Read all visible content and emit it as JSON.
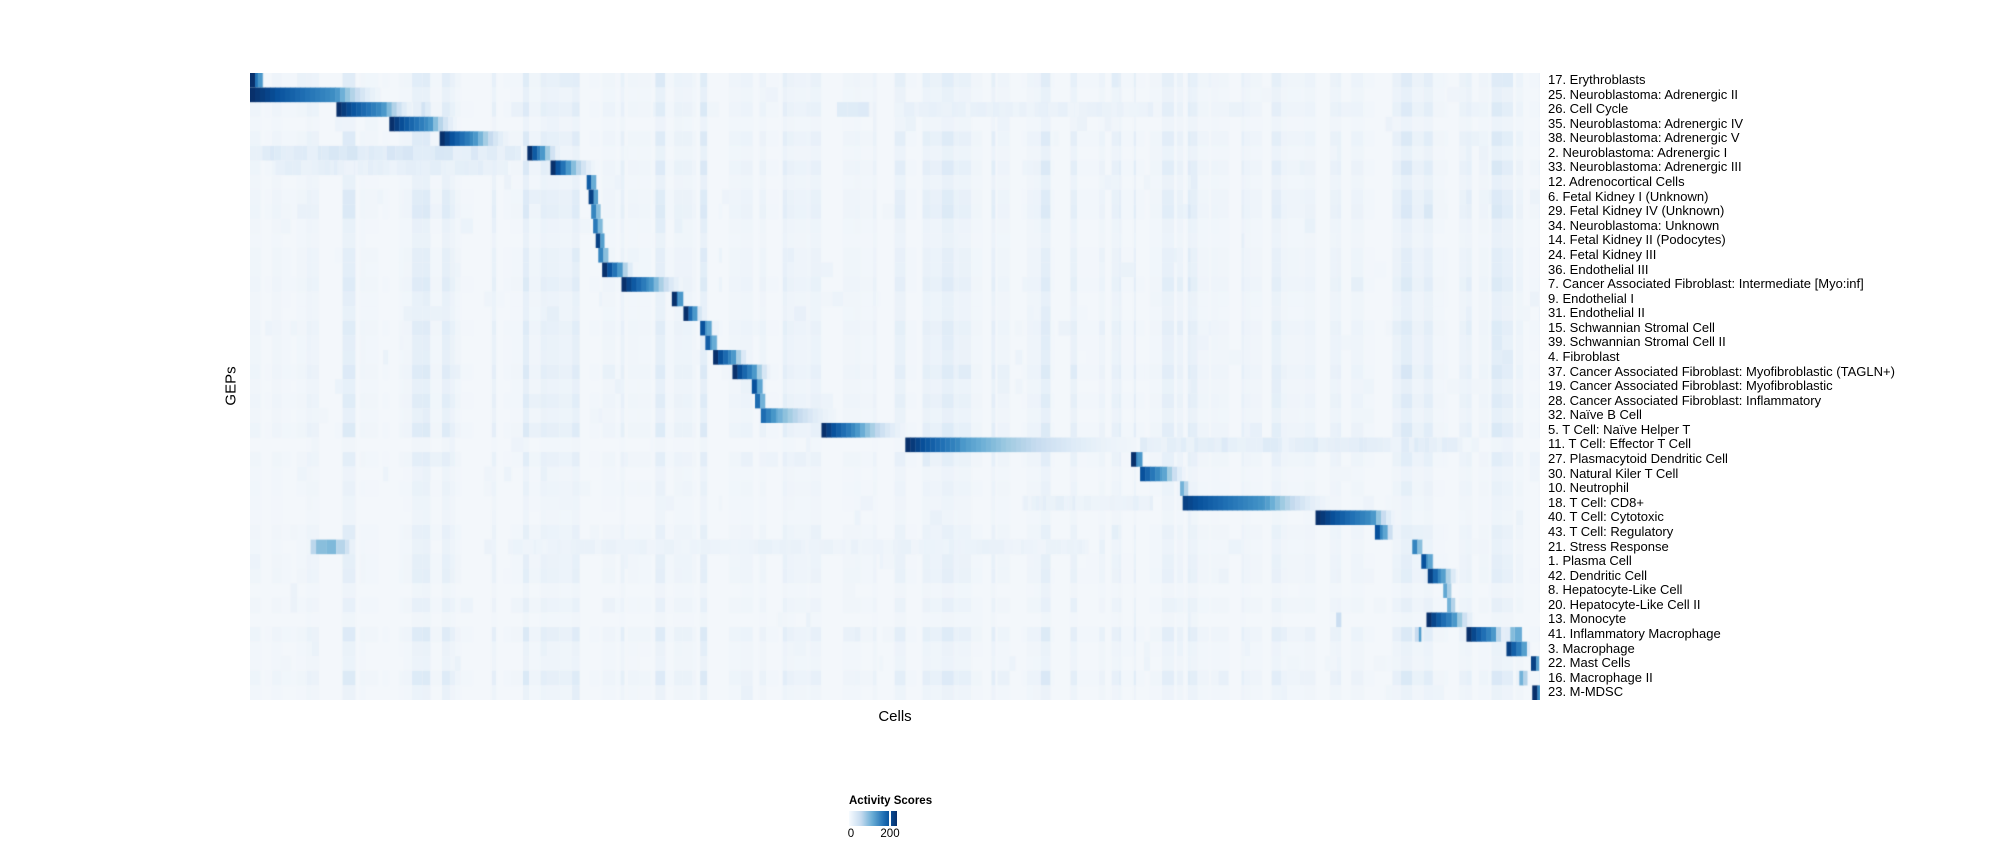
{
  "chart_data": {
    "type": "heatmap",
    "title": "",
    "xlabel": "Cells",
    "ylabel": "GEPs",
    "value_label": "Activity Scores",
    "value_range": [
      0,
      200
    ],
    "legend_position": "bottom-center",
    "grid": false,
    "colormap": {
      "name": "Blues",
      "stops": [
        [
          0.0,
          "#f3f7fb"
        ],
        [
          0.13,
          "#deebf7"
        ],
        [
          0.26,
          "#c6dbef"
        ],
        [
          0.39,
          "#9ecae1"
        ],
        [
          0.52,
          "#6baed6"
        ],
        [
          0.65,
          "#4292c6"
        ],
        [
          0.78,
          "#2171b5"
        ],
        [
          0.9,
          "#08519c"
        ],
        [
          1.0,
          "#08306b"
        ]
      ]
    },
    "noise": {
      "seed": 1337,
      "max_intensity": 0.09
    },
    "rows": [
      {
        "label": "17. Erythroblasts",
        "block": {
          "start": 0.0,
          "width": 0.006,
          "fade": 0.004,
          "peak": 1.0
        }
      },
      {
        "label": "25. Neuroblastoma: Adrenergic II",
        "block": {
          "start": 0.0,
          "width": 0.066,
          "fade": 0.035,
          "peak": 1.0
        }
      },
      {
        "label": "26. Cell Cycle",
        "block": {
          "start": 0.067,
          "width": 0.035,
          "fade": 0.024,
          "peak": 1.0
        },
        "bands": [
          [
            0.11,
            0.03,
            0.18
          ],
          [
            0.455,
            0.025,
            0.14
          ],
          [
            0.5,
            0.2,
            0.06
          ]
        ]
      },
      {
        "label": "35. Neuroblastoma: Adrenergic IV",
        "block": {
          "start": 0.108,
          "width": 0.03,
          "fade": 0.022,
          "peak": 1.0
        }
      },
      {
        "label": "38. Neuroblastoma: Adrenergic V",
        "block": {
          "start": 0.147,
          "width": 0.026,
          "fade": 0.028,
          "peak": 1.0
        }
      },
      {
        "label": "2. Neuroblastoma: Adrenergic I",
        "block": {
          "start": 0.215,
          "width": 0.01,
          "fade": 0.015,
          "peak": 1.0
        },
        "bands": [
          [
            0.0,
            0.21,
            0.13
          ]
        ]
      },
      {
        "label": "33. Neuroblastoma: Adrenergic III",
        "block": {
          "start": 0.233,
          "width": 0.012,
          "fade": 0.022,
          "peak": 1.0
        },
        "bands": [
          [
            0.02,
            0.18,
            0.08
          ]
        ]
      },
      {
        "label": "12. Adrenocortical Cells",
        "block": {
          "start": 0.261,
          "width": 0.0035,
          "fade": 0.004,
          "peak": 0.85
        }
      },
      {
        "label": "6. Fetal Kidney I (Unknown)",
        "block": {
          "start": 0.2625,
          "width": 0.004,
          "fade": 0.003,
          "peak": 0.95
        }
      },
      {
        "label": "29. Fetal Kidney IV (Unknown)",
        "block": {
          "start": 0.2645,
          "width": 0.004,
          "fade": 0.003,
          "peak": 0.7
        }
      },
      {
        "label": "34. Neuroblastoma: Unknown",
        "block": {
          "start": 0.266,
          "width": 0.0035,
          "fade": 0.004,
          "peak": 0.75
        }
      },
      {
        "label": "14. Fetal Kidney II (Podocytes)",
        "block": {
          "start": 0.268,
          "width": 0.0035,
          "fade": 0.003,
          "peak": 0.95
        }
      },
      {
        "label": "24. Fetal Kidney III",
        "block": {
          "start": 0.27,
          "width": 0.004,
          "fade": 0.004,
          "peak": 0.7
        }
      },
      {
        "label": "36. Endothelial III",
        "block": {
          "start": 0.273,
          "width": 0.012,
          "fade": 0.012,
          "peak": 1.0
        }
      },
      {
        "label": "7. Cancer Associated Fibroblast: Intermediate [Myo:inf]",
        "block": {
          "start": 0.288,
          "width": 0.021,
          "fade": 0.026,
          "peak": 1.0
        }
      },
      {
        "label": "9. Endothelial I",
        "block": {
          "start": 0.327,
          "width": 0.005,
          "fade": 0.004,
          "peak": 1.0
        }
      },
      {
        "label": "31. Endothelial II",
        "block": {
          "start": 0.336,
          "width": 0.007,
          "fade": 0.007,
          "peak": 1.0
        }
      },
      {
        "label": "15. Schwannian Stromal Cell",
        "block": {
          "start": 0.349,
          "width": 0.005,
          "fade": 0.004,
          "peak": 0.9
        }
      },
      {
        "label": "39. Schwannian Stromal Cell II",
        "block": {
          "start": 0.353,
          "width": 0.005,
          "fade": 0.004,
          "peak": 0.85
        }
      },
      {
        "label": "4. Fibroblast",
        "block": {
          "start": 0.359,
          "width": 0.014,
          "fade": 0.013,
          "peak": 1.0
        }
      },
      {
        "label": "37. Cancer Associated Fibroblast: Myofibroblastic (TAGLN+)",
        "block": {
          "start": 0.374,
          "width": 0.015,
          "fade": 0.014,
          "peak": 1.0
        }
      },
      {
        "label": "19. Cancer Associated Fibroblast: Myofibroblastic",
        "block": {
          "start": 0.389,
          "width": 0.0045,
          "fade": 0.005,
          "peak": 0.9
        }
      },
      {
        "label": "28. Cancer Associated Fibroblast: Inflammatory",
        "block": {
          "start": 0.3915,
          "width": 0.004,
          "fade": 0.004,
          "peak": 0.8
        }
      },
      {
        "label": "32. Naïve B Cell",
        "block": {
          "start": 0.396,
          "width": 0.013,
          "fade": 0.045,
          "peak": 0.8
        }
      },
      {
        "label": "5. T Cell: Naïve Helper T",
        "block": {
          "start": 0.443,
          "width": 0.026,
          "fade": 0.04,
          "peak": 1.0
        }
      },
      {
        "label": "11. T Cell: Effector T Cell",
        "block": {
          "start": 0.508,
          "width": 0.043,
          "fade": 0.135,
          "peak": 1.0
        },
        "bands": [
          [
            0.69,
            0.25,
            0.1
          ]
        ]
      },
      {
        "label": "27. Plasmacytoid Dendritic Cell",
        "block": {
          "start": 0.683,
          "width": 0.005,
          "fade": 0.004,
          "peak": 1.0
        }
      },
      {
        "label": "30. Natural Kiler T Cell",
        "block": {
          "start": 0.69,
          "width": 0.017,
          "fade": 0.018,
          "peak": 0.9
        }
      },
      {
        "label": "10. Neutrophil",
        "block": {
          "start": 0.721,
          "width": 0.003,
          "fade": 0.003,
          "peak": 0.5
        }
      },
      {
        "label": "18. T Cell: CD8+",
        "block": {
          "start": 0.723,
          "width": 0.064,
          "fade": 0.05,
          "peak": 0.95
        },
        "bands": [
          [
            0.6,
            0.1,
            0.07
          ]
        ]
      },
      {
        "label": "40. T Cell: Cytotoxic",
        "block": {
          "start": 0.826,
          "width": 0.043,
          "fade": 0.018,
          "peak": 1.0
        }
      },
      {
        "label": "43. T Cell: Regulatory",
        "block": {
          "start": 0.872,
          "width": 0.006,
          "fade": 0.009,
          "peak": 0.9
        }
      },
      {
        "label": "21. Stress Response",
        "block": {
          "start": 0.901,
          "width": 0.004,
          "fade": 0.004,
          "peak": 0.7
        },
        "bands": [
          [
            0.047,
            0.03,
            0.35
          ],
          [
            0.2,
            0.45,
            0.05
          ]
        ]
      },
      {
        "label": "1. Plasma Cell",
        "block": {
          "start": 0.908,
          "width": 0.005,
          "fade": 0.004,
          "peak": 0.9
        }
      },
      {
        "label": "42. Dendritic Cell",
        "block": {
          "start": 0.913,
          "width": 0.01,
          "fade": 0.013,
          "peak": 0.95
        }
      },
      {
        "label": "8. Hepatocyte-Like Cell",
        "block": {
          "start": 0.925,
          "width": 0.003,
          "fade": 0.003,
          "peak": 0.55
        }
      },
      {
        "label": "20. Hepatocyte-Like Cell II",
        "block": {
          "start": 0.928,
          "width": 0.003,
          "fade": 0.003,
          "peak": 0.5
        }
      },
      {
        "label": "13. Monocyte",
        "block": {
          "start": 0.912,
          "width": 0.02,
          "fade": 0.016,
          "peak": 1.0
        },
        "bands": [
          [
            0.842,
            0.004,
            0.4
          ]
        ]
      },
      {
        "label": "41. Inflammatory Macrophage",
        "block": {
          "start": 0.943,
          "width": 0.019,
          "fade": 0.011,
          "peak": 1.0
        },
        "bands": [
          [
            0.903,
            0.005,
            0.45
          ],
          [
            0.977,
            0.009,
            0.55
          ]
        ]
      },
      {
        "label": "3. Macrophage",
        "block": {
          "start": 0.974,
          "width": 0.012,
          "fade": 0.006,
          "peak": 0.95
        }
      },
      {
        "label": "22. Mast Cells",
        "block": {
          "start": 0.993,
          "width": 0.004,
          "fade": 0.002,
          "peak": 0.95
        }
      },
      {
        "label": "16. Macrophage II",
        "block": {
          "start": 0.984,
          "width": 0.003,
          "fade": 0.003,
          "peak": 0.5
        }
      },
      {
        "label": "23. M-MDSC",
        "block": {
          "start": 0.994,
          "width": 0.005,
          "fade": 0.001,
          "peak": 1.0
        }
      }
    ]
  }
}
